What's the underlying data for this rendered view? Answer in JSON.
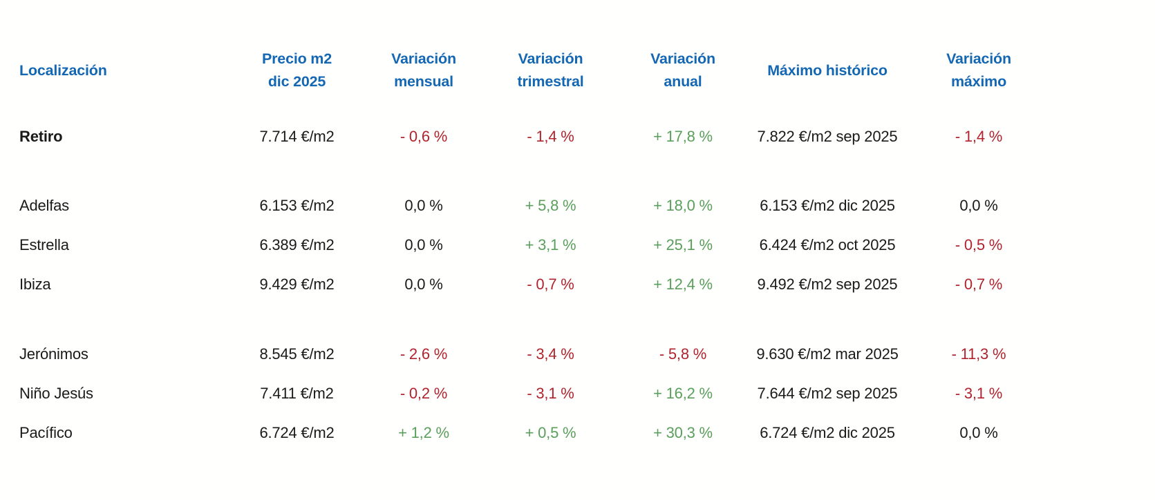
{
  "colors": {
    "header_blue": "#1467b3",
    "negative_red": "#b0232e",
    "positive_green": "#5a9e5c",
    "neutral_ink": "#1a1a1a"
  },
  "table": {
    "headers": [
      {
        "id": "localizacion",
        "line1": "Localización",
        "line2": ""
      },
      {
        "id": "precio-m2",
        "line1": "Precio m2",
        "line2": "dic 2025"
      },
      {
        "id": "variacion-mensual",
        "line1": "Variación",
        "line2": "mensual"
      },
      {
        "id": "variacion-trimestral",
        "line1": "Variación",
        "line2": "trimestral"
      },
      {
        "id": "variacion-anual",
        "line1": "Variación",
        "line2": "anual"
      },
      {
        "id": "maximo-historico",
        "line1": "Máximo histórico",
        "line2": ""
      },
      {
        "id": "variacion-maximo",
        "line1": "Variación",
        "line2": "máximo"
      }
    ],
    "groups": [
      {
        "rows": [
          {
            "location": "Retiro",
            "emphasis": true,
            "precio": "7.714 €/m2",
            "var_mensual": {
              "text": "- 0,6 %",
              "tone": "negative"
            },
            "var_trimestral": {
              "text": "- 1,4 %",
              "tone": "negative"
            },
            "var_anual": {
              "text": "+ 17,8 %",
              "tone": "positive"
            },
            "maximo_historico": "7.822 €/m2 sep 2025",
            "var_maximo": {
              "text": "- 1,4 %",
              "tone": "negative"
            }
          }
        ]
      },
      {
        "rows": [
          {
            "location": "Adelfas",
            "emphasis": false,
            "precio": "6.153 €/m2",
            "var_mensual": {
              "text": "0,0 %",
              "tone": "neutral"
            },
            "var_trimestral": {
              "text": "+ 5,8 %",
              "tone": "positive"
            },
            "var_anual": {
              "text": "+ 18,0 %",
              "tone": "positive"
            },
            "maximo_historico": "6.153 €/m2 dic 2025",
            "var_maximo": {
              "text": "0,0 %",
              "tone": "neutral"
            }
          },
          {
            "location": "Estrella",
            "emphasis": false,
            "precio": "6.389 €/m2",
            "var_mensual": {
              "text": "0,0 %",
              "tone": "neutral"
            },
            "var_trimestral": {
              "text": "+ 3,1 %",
              "tone": "positive"
            },
            "var_anual": {
              "text": "+ 25,1 %",
              "tone": "positive"
            },
            "maximo_historico": "6.424 €/m2 oct 2025",
            "var_maximo": {
              "text": "- 0,5 %",
              "tone": "negative"
            }
          },
          {
            "location": "Ibiza",
            "emphasis": false,
            "precio": "9.429 €/m2",
            "var_mensual": {
              "text": "0,0 %",
              "tone": "neutral"
            },
            "var_trimestral": {
              "text": "- 0,7 %",
              "tone": "negative"
            },
            "var_anual": {
              "text": "+ 12,4 %",
              "tone": "positive"
            },
            "maximo_historico": "9.492 €/m2 sep 2025",
            "var_maximo": {
              "text": "- 0,7 %",
              "tone": "negative"
            }
          }
        ]
      },
      {
        "rows": [
          {
            "location": "Jerónimos",
            "emphasis": false,
            "precio": "8.545 €/m2",
            "var_mensual": {
              "text": "- 2,6 %",
              "tone": "negative"
            },
            "var_trimestral": {
              "text": "- 3,4 %",
              "tone": "negative"
            },
            "var_anual": {
              "text": "- 5,8 %",
              "tone": "negative"
            },
            "maximo_historico": "9.630 €/m2 mar 2025",
            "var_maximo": {
              "text": "- 11,3 %",
              "tone": "negative"
            }
          },
          {
            "location": "Niño Jesús",
            "emphasis": false,
            "precio": "7.411 €/m2",
            "var_mensual": {
              "text": "- 0,2 %",
              "tone": "negative"
            },
            "var_trimestral": {
              "text": "- 3,1 %",
              "tone": "negative"
            },
            "var_anual": {
              "text": "+ 16,2 %",
              "tone": "positive"
            },
            "maximo_historico": "7.644 €/m2 sep 2025",
            "var_maximo": {
              "text": "- 3,1 %",
              "tone": "negative"
            }
          },
          {
            "location": "Pacífico",
            "emphasis": false,
            "precio": "6.724 €/m2",
            "var_mensual": {
              "text": "+ 1,2 %",
              "tone": "positive"
            },
            "var_trimestral": {
              "text": "+ 0,5 %",
              "tone": "positive"
            },
            "var_anual": {
              "text": "+ 30,3 %",
              "tone": "positive"
            },
            "maximo_historico": "6.724 €/m2 dic 2025",
            "var_maximo": {
              "text": "0,0 %",
              "tone": "neutral"
            }
          }
        ]
      }
    ]
  },
  "chart_data": {
    "type": "table",
    "title": "",
    "columns": [
      "Localización",
      "Precio m2 dic 2025",
      "Variación mensual",
      "Variación trimestral",
      "Variación anual",
      "Máximo histórico",
      "Variación máximo"
    ],
    "rows": [
      [
        "Retiro",
        "7.714 €/m2",
        "- 0,6 %",
        "- 1,4 %",
        "+ 17,8 %",
        "7.822 €/m2 sep 2025",
        "- 1,4 %"
      ],
      [
        "Adelfas",
        "6.153 €/m2",
        "0,0 %",
        "+ 5,8 %",
        "+ 18,0 %",
        "6.153 €/m2 dic 2025",
        "0,0 %"
      ],
      [
        "Estrella",
        "6.389 €/m2",
        "0,0 %",
        "+ 3,1 %",
        "+ 25,1 %",
        "6.424 €/m2 oct 2025",
        "- 0,5 %"
      ],
      [
        "Ibiza",
        "9.429 €/m2",
        "0,0 %",
        "- 0,7 %",
        "+ 12,4 %",
        "9.492 €/m2 sep 2025",
        "- 0,7 %"
      ],
      [
        "Jerónimos",
        "8.545 €/m2",
        "- 2,6 %",
        "- 3,4 %",
        "- 5,8 %",
        "9.630 €/m2 mar 2025",
        "- 11,3 %"
      ],
      [
        "Niño Jesús",
        "7.411 €/m2",
        "- 0,2 %",
        "- 3,1 %",
        "+ 16,2 %",
        "7.644 €/m2 sep 2025",
        "- 3,1 %"
      ],
      [
        "Pacífico",
        "6.724 €/m2",
        "+ 1,2 %",
        "+ 0,5 %",
        "+ 30,3 %",
        "6.724 €/m2 dic 2025",
        "0,0 %"
      ]
    ],
    "notes": "Negative variations shown in red, positive in green, 0,0 % in black; Retiro row is the district total (bold label)."
  }
}
